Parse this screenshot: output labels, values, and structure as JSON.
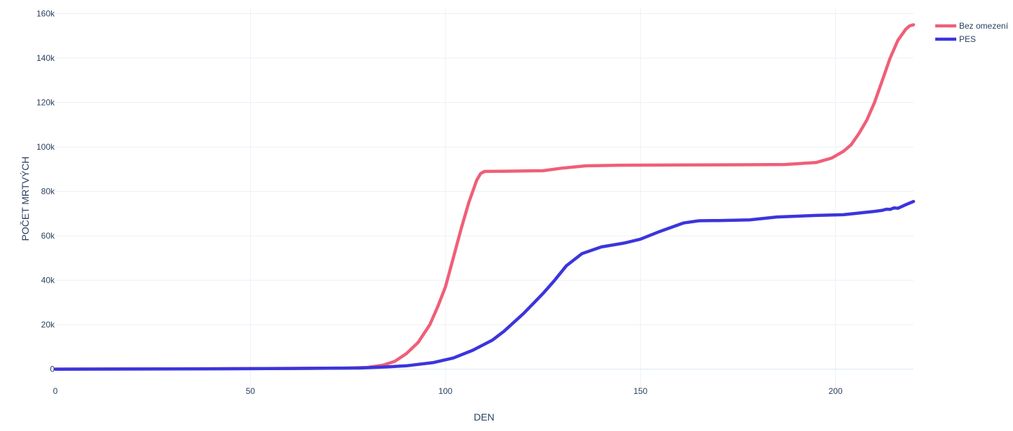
{
  "chart_data": {
    "type": "line",
    "xlabel": "DEN",
    "ylabel": "POČET MRTVÝCH",
    "xlim": [
      0,
      220
    ],
    "ylim": [
      -8000,
      163000
    ],
    "x_ticks": [
      0,
      50,
      100,
      150,
      200
    ],
    "x_tick_labels": [
      "0",
      "50",
      "100",
      "150",
      "200"
    ],
    "y_ticks": [
      0,
      20000,
      40000,
      60000,
      80000,
      100000,
      120000,
      140000,
      160000
    ],
    "y_tick_labels": [
      "0",
      "20k",
      "40k",
      "60k",
      "80k",
      "100k",
      "120k",
      "140k",
      "160k"
    ],
    "grid": true,
    "legend_position": "top-right",
    "series": [
      {
        "name": "Bez omezení",
        "color": "#ef5f78",
        "points": [
          [
            0,
            0
          ],
          [
            20,
            50
          ],
          [
            40,
            150
          ],
          [
            60,
            300
          ],
          [
            75,
            500
          ],
          [
            80,
            800
          ],
          [
            84,
            1800
          ],
          [
            87,
            3500
          ],
          [
            90,
            7000
          ],
          [
            93,
            12000
          ],
          [
            96,
            20000
          ],
          [
            98,
            28000
          ],
          [
            100,
            37000
          ],
          [
            102,
            50000
          ],
          [
            104,
            63000
          ],
          [
            106,
            75000
          ],
          [
            107,
            80000
          ],
          [
            108,
            85000
          ],
          [
            109,
            88000
          ],
          [
            110,
            89000
          ],
          [
            115,
            89100
          ],
          [
            125,
            89300
          ],
          [
            130,
            90500
          ],
          [
            136,
            91500
          ],
          [
            145,
            91800
          ],
          [
            160,
            91900
          ],
          [
            175,
            92000
          ],
          [
            187,
            92100
          ],
          [
            195,
            93000
          ],
          [
            199,
            95000
          ],
          [
            202,
            98000
          ],
          [
            204,
            101000
          ],
          [
            206,
            106000
          ],
          [
            208,
            112000
          ],
          [
            210,
            120000
          ],
          [
            212,
            130000
          ],
          [
            214,
            140000
          ],
          [
            216,
            148000
          ],
          [
            218,
            153000
          ],
          [
            219,
            154500
          ],
          [
            220,
            155000
          ]
        ]
      },
      {
        "name": "PES",
        "color": "#3b35dc",
        "points": [
          [
            0,
            0
          ],
          [
            20,
            50
          ],
          [
            40,
            150
          ],
          [
            60,
            300
          ],
          [
            78,
            500
          ],
          [
            85,
            1000
          ],
          [
            90,
            1500
          ],
          [
            97,
            3000
          ],
          [
            102,
            5000
          ],
          [
            107,
            8500
          ],
          [
            112,
            13000
          ],
          [
            115,
            17000
          ],
          [
            120,
            25000
          ],
          [
            125,
            34000
          ],
          [
            128,
            40000
          ],
          [
            131,
            46500
          ],
          [
            135,
            52000
          ],
          [
            140,
            55000
          ],
          [
            146,
            56800
          ],
          [
            150,
            58500
          ],
          [
            155,
            62000
          ],
          [
            161,
            65800
          ],
          [
            165,
            66800
          ],
          [
            170,
            66900
          ],
          [
            178,
            67200
          ],
          [
            185,
            68500
          ],
          [
            195,
            69200
          ],
          [
            202,
            69500
          ],
          [
            210,
            71000
          ],
          [
            212,
            71500
          ],
          [
            213,
            72000
          ],
          [
            214,
            71900
          ],
          [
            215,
            72600
          ],
          [
            216,
            72400
          ],
          [
            218,
            74000
          ],
          [
            220,
            75500
          ]
        ]
      }
    ]
  }
}
